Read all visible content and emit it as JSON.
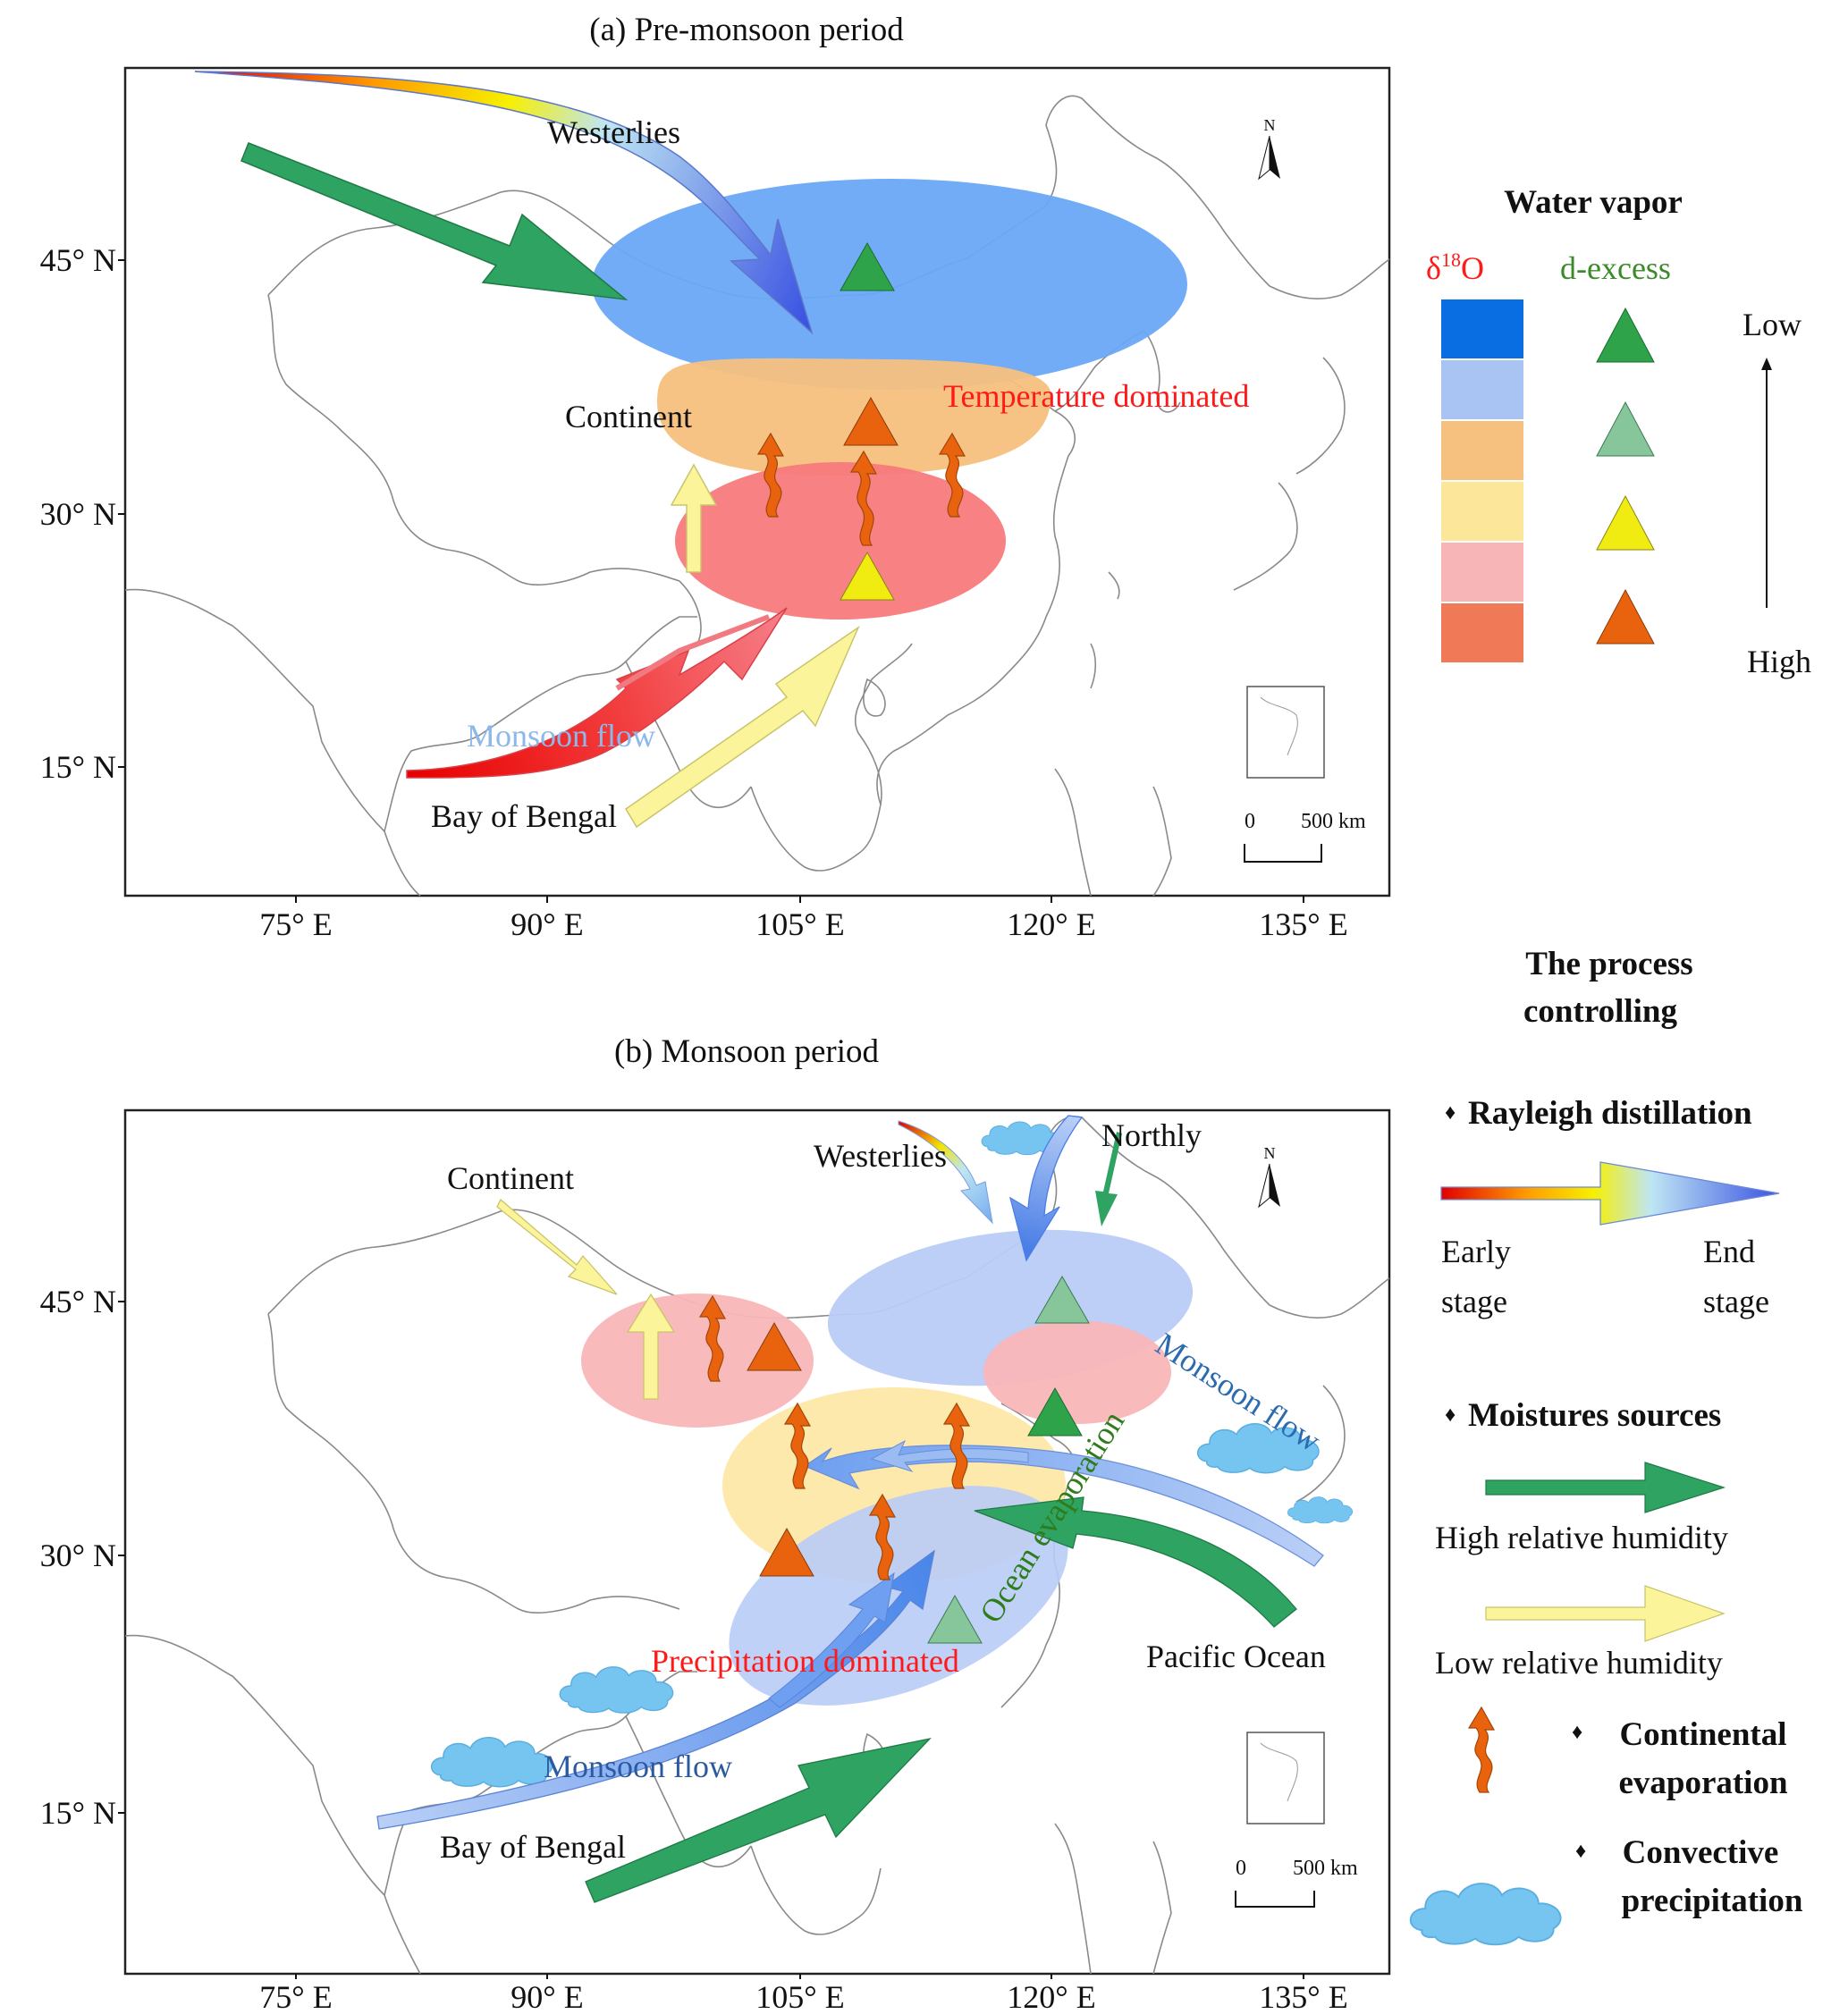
{
  "panel_a": {
    "title": "(a) Pre-monsoon period",
    "lat_ticks": [
      "45° N",
      "30° N",
      "15° N"
    ],
    "lon_ticks": [
      "75° E",
      "90° E",
      "105° E",
      "120° E",
      "135° E"
    ],
    "labels": {
      "westerlies": "Westerlies",
      "continent": "Continent",
      "temperature": "Temperature dominated",
      "monsoon_flow": "Monsoon flow",
      "bay_of_bengal": "Bay of Bengal"
    },
    "north": "N",
    "scale": {
      "zero": "0",
      "label": "500 km"
    }
  },
  "panel_b": {
    "title": "(b) Monsoon period",
    "lat_ticks": [
      "45° N",
      "30° N",
      "15° N"
    ],
    "lon_ticks": [
      "75° E",
      "90° E",
      "105° E",
      "120° E",
      "135° E"
    ],
    "labels": {
      "continent": "Continent",
      "westerlies": "Westerlies",
      "northly": "Northly",
      "monsoon_flow_ne": "Monsoon flow",
      "ocean_evaporation": "Ocean evaporation",
      "precipitation": "Precipitation dominated",
      "pacific": "Pacific Ocean",
      "monsoon_flow_sw": "Monsoon flow",
      "bay_of_bengal": "Bay of Bengal"
    },
    "north": "N",
    "scale": {
      "zero": "0",
      "label": "500 km"
    }
  },
  "legend": {
    "water_vapor_title": "Water vapor",
    "d18o_label": "δ18O",
    "dexcess_label": "d-excess",
    "low": "Low",
    "high": "High",
    "swatch_colors": [
      "#0a6ee3",
      "#a9c4f3",
      "#f6c07e",
      "#fce69a",
      "#f7b5b8",
      "#f07a58"
    ],
    "triangle_colors": [
      "#2ea34a",
      "#86c69a",
      "#f0ec12",
      "#e9630e"
    ],
    "process_title_1": "The process",
    "process_title_2": "controlling",
    "rayleigh": "Rayleigh distillation",
    "early": "Early",
    "end": "End",
    "stage": "stage",
    "moisture_sources": "Moistures sources",
    "high_rh": "High relative humidity",
    "low_rh": "Low relative humidity",
    "cont_evap_1": "Continental",
    "cont_evap_2": "evaporation",
    "conv_precip_1": "Convective",
    "conv_precip_2": "precipitation",
    "bullet": "♦"
  },
  "colors": {
    "blue_ellipse": "#6aa8f5",
    "orange_band": "#f6c07e",
    "red_ellipse": "#f77a7c",
    "light_blue_ellipse": "#b9ccf6",
    "pink_ellipse": "#f9b6b8",
    "yellow_ellipse": "#fde8a8",
    "green_arrow": "#2ea362",
    "yellow_arrow": "#fbf49a",
    "red_text": "#ff1a1a",
    "monsoon_text_light": "#8cb8ea",
    "monsoon_text_dark": "#2b6cb0",
    "ocean_text": "#2f7d1a",
    "cloud": "#76c5f0"
  }
}
